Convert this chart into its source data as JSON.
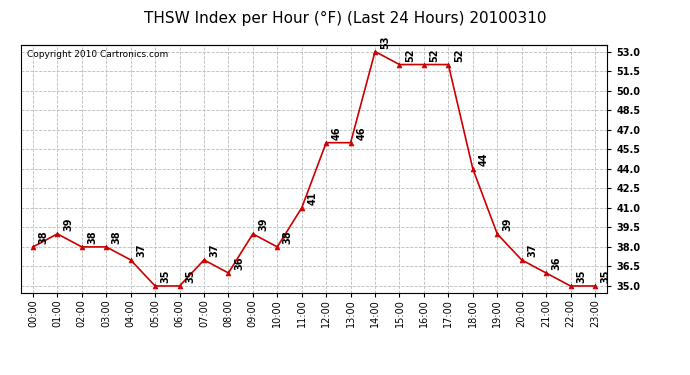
{
  "title": "THSW Index per Hour (°F) (Last 24 Hours) 20100310",
  "copyright": "Copyright 2010 Cartronics.com",
  "hours": [
    "00:00",
    "01:00",
    "02:00",
    "03:00",
    "04:00",
    "05:00",
    "06:00",
    "07:00",
    "08:00",
    "09:00",
    "10:00",
    "11:00",
    "12:00",
    "13:00",
    "14:00",
    "15:00",
    "16:00",
    "17:00",
    "18:00",
    "19:00",
    "20:00",
    "21:00",
    "22:00",
    "23:00"
  ],
  "values": [
    38,
    39,
    38,
    38,
    37,
    35,
    35,
    37,
    36,
    39,
    38,
    41,
    46,
    46,
    53,
    52,
    52,
    52,
    44,
    39,
    37,
    36,
    35,
    35
  ],
  "ylim_min": 34.5,
  "ylim_max": 53.5,
  "yticks": [
    35.0,
    36.5,
    38.0,
    39.5,
    41.0,
    42.5,
    44.0,
    45.5,
    47.0,
    48.5,
    50.0,
    51.5,
    53.0
  ],
  "line_color": "#cc0000",
  "marker_color": "#cc0000",
  "bg_color": "#ffffff",
  "grid_color": "#bbbbbb",
  "title_fontsize": 11,
  "label_fontsize": 7,
  "annotation_fontsize": 7,
  "copyright_fontsize": 6.5
}
